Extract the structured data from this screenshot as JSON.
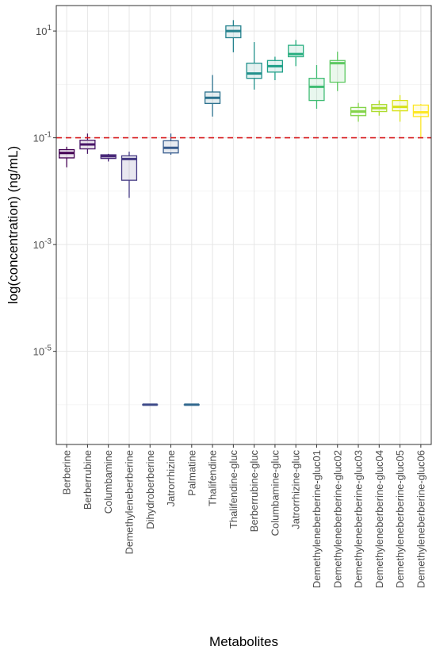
{
  "chart_data": {
    "type": "box",
    "xlabel": "Metabolites",
    "ylabel": "log(concentration) (ng/mL)",
    "y_scale": "log10",
    "ylim": [
      1.8e-07,
      30
    ],
    "y_ticks": [
      {
        "value": 1e-05,
        "base": "10",
        "exp": "-5"
      },
      {
        "value": 0.001,
        "base": "10",
        "exp": "-3"
      },
      {
        "value": 0.1,
        "base": "10",
        "exp": "-1"
      },
      {
        "value": 10,
        "base": "10",
        "exp": "1"
      }
    ],
    "grid": true,
    "reference_line": {
      "value": 0.1,
      "color": "#d7191c",
      "style": "dashed"
    },
    "categories": [
      "Berberine",
      "Berberrubine",
      "Columbamine",
      "Demethyleneberberine",
      "Dihydroberberine",
      "Jatrorrhizine",
      "Palmatine",
      "Thalifendine",
      "Thalifendine-gluc",
      "Berberrubine-gluc",
      "Columbamine-gluc",
      "Jatrorrhizine-gluc",
      "Demethyleneberberine-gluc01",
      "Demethyleneberberine-gluc02",
      "Demethyleneberberine-gluc03",
      "Demethyleneberberine-gluc04",
      "Demethyleneberberine-gluc05",
      "Demethyleneberberine-gluc06"
    ],
    "boxes": [
      {
        "min": 0.028,
        "q1": 0.042,
        "median": 0.052,
        "q3": 0.06,
        "max": 0.068,
        "color": "#440154"
      },
      {
        "min": 0.05,
        "q1": 0.062,
        "median": 0.075,
        "q3": 0.09,
        "max": 0.12,
        "color": "#481668"
      },
      {
        "min": 0.036,
        "q1": 0.041,
        "median": 0.045,
        "q3": 0.048,
        "max": 0.05,
        "color": "#482878"
      },
      {
        "min": 0.0075,
        "q1": 0.016,
        "median": 0.04,
        "q3": 0.046,
        "max": 0.055,
        "color": "#443983"
      },
      {
        "min": 1e-06,
        "q1": 1e-06,
        "median": 1e-06,
        "q3": 1e-06,
        "max": 1e-06,
        "color": "#3e4a89"
      },
      {
        "min": 0.048,
        "q1": 0.052,
        "median": 0.065,
        "q3": 0.088,
        "max": 0.12,
        "color": "#375b8d"
      },
      {
        "min": 1e-06,
        "q1": 1e-06,
        "median": 1e-06,
        "q3": 1e-06,
        "max": 1e-06,
        "color": "#31688e"
      },
      {
        "min": 0.25,
        "q1": 0.44,
        "median": 0.56,
        "q3": 0.72,
        "max": 1.5,
        "color": "#2c728e"
      },
      {
        "min": 4.0,
        "q1": 7.5,
        "median": 10.0,
        "q3": 12.5,
        "max": 16.0,
        "color": "#26828e"
      },
      {
        "min": 0.8,
        "q1": 1.3,
        "median": 1.6,
        "q3": 2.5,
        "max": 6.2,
        "color": "#21918c"
      },
      {
        "min": 1.2,
        "q1": 1.7,
        "median": 2.2,
        "q3": 2.8,
        "max": 3.3,
        "color": "#1fa088"
      },
      {
        "min": 2.2,
        "q1": 3.3,
        "median": 3.7,
        "q3": 5.4,
        "max": 6.8,
        "color": "#28ae80"
      },
      {
        "min": 0.35,
        "q1": 0.5,
        "median": 0.9,
        "q3": 1.3,
        "max": 2.3,
        "color": "#3fbc73"
      },
      {
        "min": 0.75,
        "q1": 1.1,
        "median": 2.5,
        "q3": 2.8,
        "max": 4.1,
        "color": "#5ec962"
      },
      {
        "min": 0.2,
        "q1": 0.26,
        "median": 0.31,
        "q3": 0.37,
        "max": 0.45,
        "color": "#84d44b"
      },
      {
        "min": 0.26,
        "q1": 0.31,
        "median": 0.36,
        "q3": 0.42,
        "max": 0.5,
        "color": "#addc30"
      },
      {
        "min": 0.2,
        "q1": 0.32,
        "median": 0.38,
        "q3": 0.5,
        "max": 0.63,
        "color": "#d8e219"
      },
      {
        "min": 0.1,
        "q1": 0.25,
        "median": 0.3,
        "q3": 0.41,
        "max": 0.43,
        "color": "#fde725"
      }
    ]
  }
}
